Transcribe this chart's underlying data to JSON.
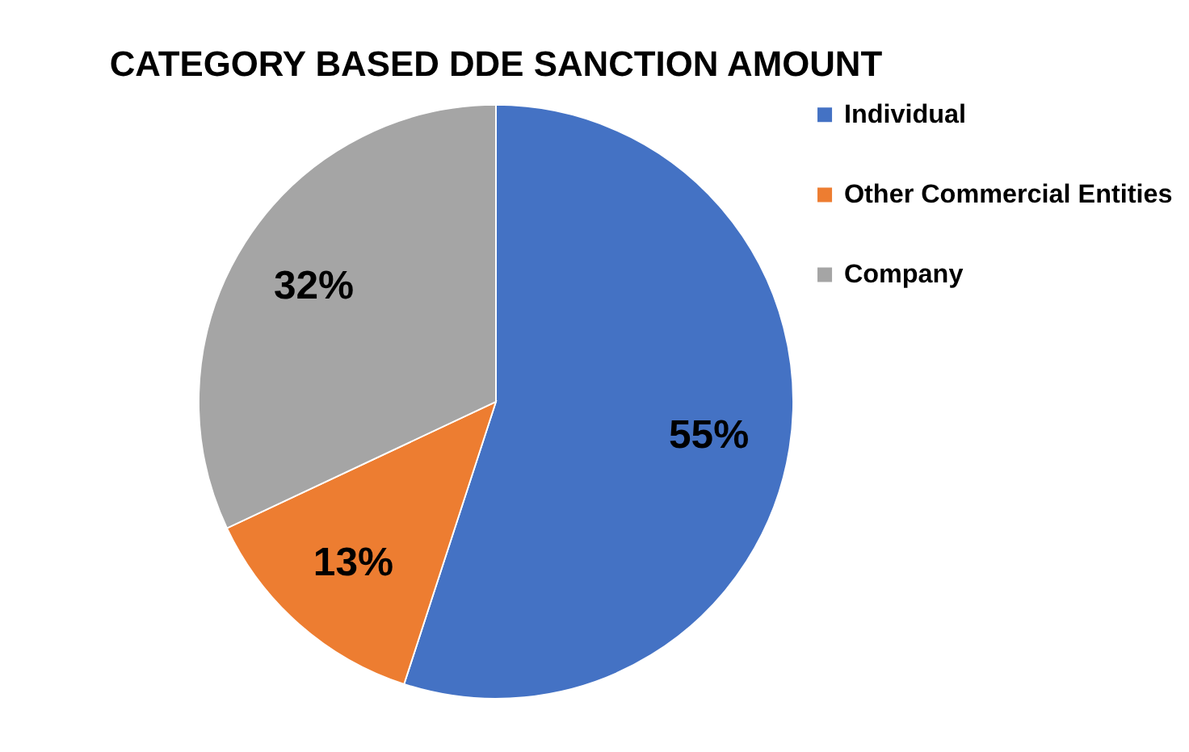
{
  "chart_data": {
    "type": "pie",
    "title": "CATEGORY BASED DDE SANCTION AMOUNT",
    "categories": [
      "Individual",
      "Other Commercial Entities",
      "Company"
    ],
    "values": [
      55,
      13,
      32
    ],
    "colors": [
      "#4472c4",
      "#ed7d31",
      "#a5a5a5"
    ],
    "value_labels": [
      "55%",
      "13%",
      "32%"
    ],
    "legend": "right"
  }
}
